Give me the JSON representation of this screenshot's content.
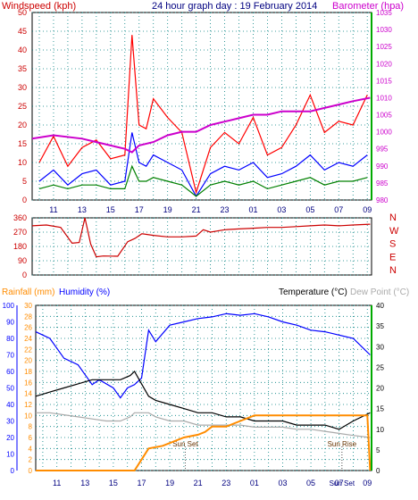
{
  "header": {
    "left_label": "Windspeed (kph)",
    "title": "24 hour graph day : 19 February 2014",
    "right_label": "Barometer (hpa)"
  },
  "colors": {
    "windspeed": "#ff0000",
    "wind_blue": "#0000ff",
    "wind_green": "#008000",
    "barometer": "#cc00cc",
    "humidity": "#0000ff",
    "temperature": "#000000",
    "dew_point": "#aaaaaa",
    "rainfall": "#ff8c00",
    "grid": "#008080",
    "axis_red": "#cc0000"
  },
  "chart_data": [
    {
      "type": "line",
      "title": "24 hour graph day : 19 February 2014",
      "ylabel": "Windspeed (kph)",
      "y2label": "Barometer (hpa)",
      "ylim": [
        0,
        50
      ],
      "y2lim": [
        980,
        1035
      ],
      "yticks": [
        0,
        5,
        10,
        15,
        20,
        25,
        30,
        35,
        40,
        45,
        50
      ],
      "y2ticks": [
        980,
        985,
        990,
        995,
        1000,
        1005,
        1010,
        1015,
        1020,
        1025,
        1030,
        1035
      ],
      "xticks": [
        "11",
        "13",
        "15",
        "17",
        "19",
        "21",
        "23",
        "01",
        "03",
        "05",
        "07",
        "09"
      ],
      "grid": true,
      "series": [
        {
          "name": "wind_gust",
          "axis": "left",
          "color": "#ff0000",
          "x": [
            10,
            11,
            12,
            13,
            14,
            15,
            16,
            16.5,
            17,
            17.5,
            18,
            19,
            20,
            21,
            22,
            23,
            0,
            1,
            2,
            3,
            4,
            5,
            6,
            7,
            8,
            9
          ],
          "y": [
            10,
            17,
            9,
            14,
            16,
            11,
            12,
            44,
            20,
            19,
            27,
            22,
            18,
            2,
            14,
            18,
            15,
            22,
            12,
            14,
            20,
            28,
            18,
            21,
            20,
            28
          ]
        },
        {
          "name": "wind_avg",
          "axis": "left",
          "color": "#0000ff",
          "x": [
            10,
            11,
            12,
            13,
            14,
            15,
            16,
            16.5,
            17,
            17.5,
            18,
            19,
            20,
            21,
            22,
            23,
            0,
            1,
            2,
            3,
            4,
            5,
            6,
            7,
            8,
            9
          ],
          "y": [
            5,
            8,
            4,
            7,
            8,
            4,
            5,
            18,
            10,
            9,
            12,
            10,
            8,
            1,
            7,
            9,
            8,
            10,
            6,
            7,
            9,
            12,
            8,
            10,
            9,
            12
          ]
        },
        {
          "name": "wind_low",
          "axis": "left",
          "color": "#008000",
          "x": [
            10,
            11,
            12,
            13,
            14,
            15,
            16,
            16.5,
            17,
            17.5,
            18,
            19,
            20,
            21,
            22,
            23,
            0,
            1,
            2,
            3,
            4,
            5,
            6,
            7,
            8,
            9
          ],
          "y": [
            3,
            4,
            3,
            4,
            4,
            3,
            3,
            9,
            5,
            5,
            6,
            5,
            4,
            1,
            4,
            5,
            4,
            5,
            3,
            4,
            5,
            6,
            4,
            5,
            5,
            6
          ]
        },
        {
          "name": "barometer",
          "axis": "right",
          "color": "#cc00cc",
          "x": [
            9.5,
            11,
            13,
            14,
            15,
            16,
            16.5,
            17,
            18,
            19,
            20,
            21,
            22,
            23,
            0,
            1,
            2,
            3,
            4,
            5,
            6,
            7,
            8,
            9.2
          ],
          "y": [
            998,
            999,
            998,
            997,
            996,
            995,
            994,
            996,
            997,
            999,
            1000,
            1000,
            1002,
            1003,
            1004,
            1005,
            1005,
            1006,
            1006,
            1006,
            1007,
            1008,
            1009,
            1010
          ]
        }
      ]
    },
    {
      "type": "line",
      "ylim": [
        0,
        360
      ],
      "yticks": [
        0,
        90,
        180,
        270,
        360
      ],
      "y2labels": [
        "N",
        "W",
        "S",
        "E",
        "N"
      ],
      "xticks": [
        "11",
        "13",
        "15",
        "17",
        "19",
        "21",
        "23",
        "01",
        "03",
        "05",
        "07",
        "09"
      ],
      "grid": true,
      "series": [
        {
          "name": "wind_direction",
          "color": "#cc0000",
          "x": [
            9.5,
            10.5,
            11.5,
            12.3,
            12.8,
            13.2,
            13.6,
            14,
            14.5,
            15.5,
            16.2,
            16.7,
            17.2,
            18,
            19,
            20,
            21,
            21.5,
            22,
            23,
            0,
            1,
            2,
            3,
            4,
            5,
            6,
            7,
            8,
            9.2
          ],
          "y": [
            310,
            315,
            300,
            200,
            205,
            360,
            195,
            115,
            120,
            118,
            210,
            230,
            260,
            250,
            240,
            240,
            245,
            285,
            270,
            285,
            290,
            295,
            300,
            300,
            305,
            310,
            315,
            310,
            315,
            320
          ]
        }
      ]
    },
    {
      "type": "line",
      "labels": {
        "rainfall": "Rainfall (mm)",
        "humidity": "Humidity (%)",
        "temperature": "Temperature (°C)",
        "dew_point": "Dew Point (°C)"
      },
      "humidity_ylim": [
        0,
        100
      ],
      "humidity_yticks": [
        0,
        10,
        20,
        30,
        40,
        50,
        60,
        70,
        80,
        90,
        100
      ],
      "rain_ylim": [
        0,
        30
      ],
      "rain_yticks": [
        0,
        2,
        4,
        6,
        8,
        10,
        12,
        14,
        16,
        18,
        20,
        22,
        24,
        26,
        28,
        30
      ],
      "temp_ylim": [
        0,
        40
      ],
      "temp_yticks": [
        0,
        5,
        10,
        15,
        20,
        25,
        30,
        35,
        40
      ],
      "xticks": [
        "11",
        "13",
        "15",
        "17",
        "19",
        "21",
        "23",
        "01",
        "03",
        "05",
        "07",
        "09"
      ],
      "annotations": [
        {
          "text": "Sun Set",
          "x": 20.1
        },
        {
          "text": "Sun Rise",
          "x": 7.2
        },
        {
          "text": "Sun Set",
          "x": 7.2
        }
      ],
      "grid": true,
      "series": [
        {
          "name": "humidity",
          "axis": "humidity",
          "color": "#0000ff",
          "x": [
            9.5,
            10.5,
            11.5,
            12.5,
            13,
            13.5,
            14,
            15,
            15.5,
            16,
            16.5,
            17,
            17.5,
            18,
            19,
            20,
            21,
            22,
            23,
            0,
            1,
            2,
            3,
            4,
            5,
            6,
            7,
            8,
            9.2
          ],
          "y": [
            84,
            80,
            68,
            64,
            58,
            52,
            55,
            50,
            44,
            50,
            52,
            56,
            85,
            78,
            88,
            90,
            92,
            93,
            95,
            94,
            95,
            93,
            90,
            88,
            85,
            84,
            82,
            80,
            70
          ]
        },
        {
          "name": "temperature",
          "axis": "temp",
          "color": "#000000",
          "x": [
            9.5,
            10.5,
            11.5,
            12.5,
            13.5,
            14.5,
            15.5,
            16.2,
            16.5,
            17,
            17.5,
            18,
            19,
            20,
            21,
            22,
            23,
            0,
            1,
            2,
            3,
            4,
            5,
            6,
            7,
            8,
            9.2
          ],
          "y": [
            18,
            19,
            20,
            21,
            22,
            22,
            22,
            23,
            24,
            21,
            18,
            17,
            16,
            15,
            14,
            14,
            13,
            13,
            12,
            12,
            12,
            11,
            11,
            11,
            10,
            12,
            14
          ]
        },
        {
          "name": "dew_point",
          "axis": "temp",
          "color": "#aaaaaa",
          "x": [
            9.5,
            10.5,
            11.5,
            12.5,
            13.5,
            14.5,
            15.5,
            16.2,
            16.5,
            17,
            17.5,
            18,
            19,
            20,
            21,
            22,
            23,
            0,
            1,
            2,
            3,
            4,
            5,
            6,
            7,
            8,
            9.2
          ],
          "y": [
            14,
            14,
            13.5,
            13,
            12.5,
            12,
            12,
            13,
            14,
            14,
            14,
            13,
            12,
            12,
            11,
            11,
            11,
            11,
            10.5,
            10.5,
            10.5,
            10,
            10,
            9.5,
            9,
            8.5,
            8
          ]
        },
        {
          "name": "rainfall",
          "axis": "rain",
          "color": "#ff8c00",
          "x": [
            9.5,
            16.5,
            17,
            17.5,
            18.5,
            19,
            20,
            21,
            21.5,
            22,
            23,
            0,
            1,
            2,
            3,
            4,
            5,
            6,
            7,
            7.5,
            9,
            9.2
          ],
          "y": [
            0,
            0,
            2,
            4,
            4.5,
            5,
            6,
            6.5,
            7,
            8,
            8,
            9,
            10,
            10,
            10,
            10,
            10,
            10,
            10,
            10,
            10,
            0
          ]
        }
      ]
    }
  ]
}
